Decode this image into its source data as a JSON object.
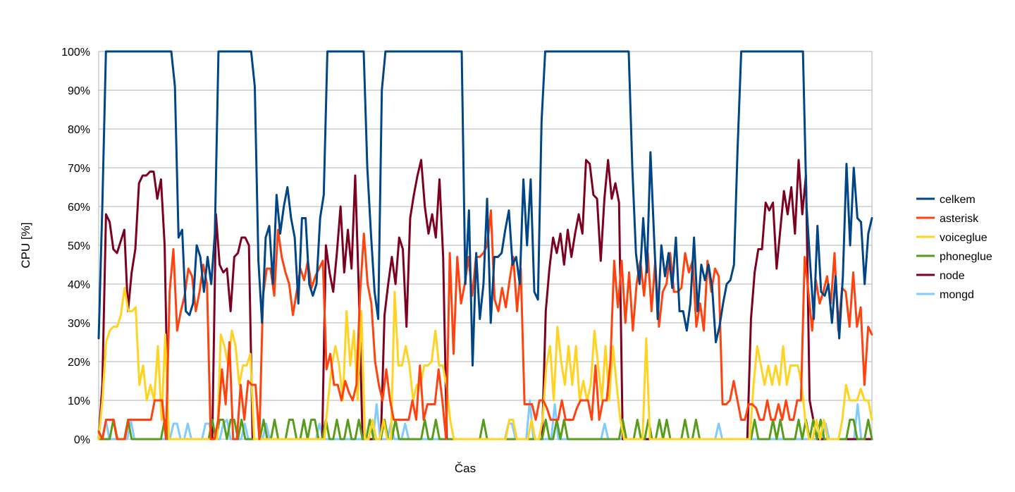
{
  "chart_data": {
    "type": "line",
    "title": "",
    "xlabel": "Čas",
    "ylabel": "CPU [%]",
    "ylim": [
      0,
      100
    ],
    "yticks": [
      "0%",
      "10%",
      "20%",
      "30%",
      "40%",
      "50%",
      "60%",
      "70%",
      "80%",
      "90%",
      "100%"
    ],
    "grid": true,
    "legend_position": "right",
    "series": [
      {
        "name": "celkem",
        "color": "#004586",
        "values": [
          26,
          60,
          100,
          100,
          100,
          100,
          100,
          100,
          100,
          100,
          100,
          100,
          100,
          100,
          100,
          100,
          100,
          100,
          100,
          100,
          100,
          91,
          52,
          54,
          33,
          32,
          35,
          50,
          47,
          38,
          47,
          40,
          53,
          100,
          100,
          100,
          100,
          100,
          100,
          100,
          100,
          100,
          100,
          91,
          46,
          30,
          52,
          55,
          40,
          63,
          53,
          60,
          65,
          57,
          52,
          35,
          57,
          57,
          40,
          37,
          40,
          57,
          63,
          100,
          100,
          100,
          100,
          100,
          100,
          100,
          100,
          100,
          100,
          100,
          70,
          53,
          38,
          31,
          90,
          100,
          100,
          100,
          100,
          100,
          100,
          100,
          100,
          100,
          100,
          100,
          100,
          100,
          100,
          100,
          100,
          100,
          100,
          100,
          100,
          100,
          100,
          40,
          59,
          19,
          48,
          31,
          40,
          62,
          30,
          47,
          47,
          48,
          54,
          59,
          45,
          47,
          40,
          67,
          50,
          67,
          38,
          36,
          82,
          100,
          100,
          100,
          100,
          100,
          100,
          100,
          100,
          100,
          100,
          100,
          100,
          100,
          100,
          100,
          100,
          100,
          100,
          100,
          100,
          100,
          100,
          100,
          100,
          70,
          48,
          40,
          57,
          43,
          74,
          52,
          31,
          50,
          42,
          48,
          39,
          52,
          33,
          33,
          28,
          35,
          52,
          33,
          45,
          41,
          45,
          39,
          25,
          29,
          35,
          40,
          41,
          45,
          75,
          100,
          100,
          100,
          100,
          100,
          100,
          100,
          100,
          100,
          100,
          100,
          100,
          100,
          100,
          100,
          100,
          100,
          100,
          60,
          45,
          31,
          55,
          38,
          37,
          40,
          30,
          42,
          26,
          42,
          71,
          50,
          70,
          57,
          56,
          40,
          53,
          57
        ]
      },
      {
        "name": "asterisk",
        "color": "#ff420e",
        "values": [
          2,
          0,
          5,
          5,
          5,
          0,
          0,
          0,
          5,
          5,
          5,
          5,
          5,
          5,
          5,
          10,
          10,
          10,
          0,
          38,
          49,
          28,
          33,
          37,
          44,
          42,
          33,
          38,
          45,
          40,
          0,
          0,
          5,
          18,
          9,
          25,
          0,
          0,
          14,
          5,
          15,
          14,
          14,
          0,
          37,
          44,
          44,
          37,
          54,
          47,
          43,
          40,
          32,
          38,
          44,
          41,
          46,
          39,
          42,
          44,
          46,
          18,
          22,
          14,
          14,
          10,
          15,
          12,
          10,
          14,
          38,
          53,
          40,
          35,
          20,
          14,
          10,
          18,
          10,
          5,
          5,
          5,
          5,
          5,
          10,
          5,
          19,
          5,
          9,
          9,
          9,
          18,
          10,
          0,
          48,
          22,
          47,
          35,
          40,
          47,
          37,
          47,
          47,
          48,
          50,
          59,
          36,
          33,
          39,
          34,
          41,
          47,
          33,
          44,
          9,
          9,
          9,
          5,
          10,
          10,
          8,
          5,
          5,
          5,
          10,
          5,
          5,
          5,
          8,
          10,
          10,
          10,
          5,
          19,
          5,
          10,
          10,
          20,
          46,
          34,
          46,
          30,
          43,
          28,
          40,
          46,
          37,
          48,
          33,
          46,
          29,
          38,
          40,
          48,
          38,
          38,
          39,
          48,
          43,
          46,
          29,
          35,
          28,
          46,
          38,
          44,
          42,
          9,
          9,
          10,
          15,
          10,
          5,
          5,
          9,
          9,
          8,
          5,
          5,
          10,
          5,
          5,
          9,
          5,
          10,
          5,
          5,
          10,
          10,
          47,
          38,
          28,
          41,
          35,
          38,
          42,
          35,
          48,
          28,
          39,
          38,
          29,
          43,
          29,
          34,
          14,
          29,
          27
        ]
      },
      {
        "name": "voiceglue",
        "color": "#ffd320",
        "values": [
          0,
          10,
          25,
          28,
          29,
          29,
          32,
          39,
          33,
          33,
          34,
          14,
          19,
          10,
          14,
          10,
          24,
          5,
          27,
          0,
          0,
          0,
          0,
          0,
          0,
          0,
          0,
          0,
          0,
          0,
          0,
          0,
          0,
          27,
          24,
          19,
          28,
          24,
          14,
          19,
          19,
          22,
          0,
          0,
          0,
          0,
          0,
          0,
          0,
          0,
          0,
          0,
          0,
          0,
          0,
          0,
          0,
          0,
          0,
          0,
          0,
          0,
          10,
          19,
          24,
          19,
          10,
          33,
          19,
          28,
          10,
          33,
          0,
          0,
          5,
          0,
          0,
          5,
          0,
          0,
          38,
          19,
          19,
          24,
          19,
          10,
          14,
          14,
          19,
          19,
          20,
          28,
          19,
          19,
          14,
          5,
          0,
          0,
          0,
          0,
          0,
          0,
          0,
          0,
          0,
          0,
          0,
          0,
          0,
          0,
          0,
          5,
          5,
          0,
          0,
          0,
          0,
          5,
          0,
          0,
          5,
          19,
          24,
          10,
          29,
          20,
          14,
          24,
          14,
          24,
          10,
          15,
          10,
          14,
          28,
          19,
          10,
          24,
          10,
          24,
          14,
          5,
          0,
          0,
          0,
          0,
          0,
          0,
          26,
          0,
          0,
          0,
          0,
          0,
          0,
          0,
          0,
          0,
          0,
          0,
          0,
          0,
          0,
          0,
          0,
          0,
          0,
          0,
          0,
          0,
          0,
          0,
          0,
          0,
          0,
          0,
          0,
          14,
          24,
          19,
          14,
          19,
          14,
          19,
          14,
          24,
          14,
          19,
          19,
          19,
          14,
          5,
          0,
          0,
          5,
          0,
          5,
          0,
          0,
          0,
          0,
          5,
          14,
          10,
          10,
          10,
          13,
          10,
          10,
          5
        ]
      },
      {
        "name": "phoneglue",
        "color": "#579d1c",
        "values": [
          0,
          0,
          0,
          0,
          5,
          0,
          0,
          0,
          5,
          0,
          0,
          0,
          0,
          0,
          0,
          0,
          0,
          0,
          5,
          0,
          0,
          0,
          0,
          0,
          0,
          0,
          0,
          0,
          0,
          0,
          0,
          5,
          0,
          5,
          5,
          0,
          5,
          5,
          0,
          5,
          0,
          0,
          0,
          0,
          0,
          5,
          0,
          0,
          5,
          0,
          0,
          0,
          5,
          5,
          0,
          0,
          5,
          0,
          5,
          5,
          0,
          0,
          5,
          0,
          0,
          5,
          0,
          0,
          5,
          0,
          0,
          5,
          0,
          0,
          5,
          0,
          0,
          0,
          5,
          0,
          0,
          5,
          0,
          0,
          0,
          0,
          0,
          0,
          0,
          5,
          0,
          0,
          5,
          0,
          0,
          0,
          0,
          0,
          0,
          0,
          0,
          0,
          0,
          0,
          0,
          5,
          0,
          0,
          0,
          0,
          0,
          0,
          0,
          0,
          0,
          0,
          0,
          0,
          0,
          0,
          0,
          0,
          5,
          0,
          0,
          5,
          0,
          5,
          0,
          0,
          0,
          0,
          0,
          0,
          0,
          0,
          0,
          0,
          0,
          0,
          0,
          0,
          0,
          5,
          0,
          0,
          0,
          5,
          0,
          0,
          5,
          0,
          0,
          5,
          0,
          5,
          0,
          0,
          0,
          0,
          5,
          0,
          0,
          5,
          0,
          0,
          0,
          0,
          0,
          0,
          0,
          0,
          0,
          0,
          0,
          0,
          0,
          0,
          0,
          5,
          0,
          0,
          0,
          0,
          5,
          0,
          5,
          0,
          0,
          0,
          0,
          5,
          0,
          5,
          0,
          5,
          0,
          5,
          0,
          0,
          0,
          0,
          0,
          0,
          0,
          5,
          5,
          0,
          0,
          0,
          5,
          0
        ]
      },
      {
        "name": "node",
        "color": "#7e0021",
        "values": [
          0,
          14,
          58,
          56,
          49,
          48,
          51,
          54,
          33,
          43,
          49,
          66,
          68,
          68,
          69,
          69,
          62,
          67,
          50,
          0,
          0,
          0,
          0,
          0,
          0,
          0,
          0,
          0,
          0,
          0,
          0,
          0,
          58,
          45,
          43,
          44,
          33,
          47,
          48,
          52,
          52,
          50,
          0,
          0,
          0,
          0,
          0,
          0,
          0,
          0,
          0,
          0,
          0,
          0,
          0,
          0,
          0,
          0,
          0,
          0,
          0,
          0,
          50,
          43,
          38,
          48,
          60,
          43,
          54,
          44,
          68,
          38,
          0,
          0,
          0,
          0,
          0,
          0,
          32,
          40,
          47,
          40,
          52,
          49,
          29,
          57,
          63,
          68,
          72,
          60,
          53,
          58,
          52,
          67,
          47,
          0,
          0,
          0,
          0,
          0,
          0,
          0,
          0,
          0,
          0,
          0,
          0,
          0,
          0,
          0,
          0,
          0,
          0,
          0,
          0,
          0,
          0,
          0,
          0,
          0,
          0,
          0,
          33,
          44,
          52,
          48,
          53,
          45,
          54,
          47,
          53,
          58,
          53,
          72,
          71,
          63,
          62,
          46,
          62,
          72,
          62,
          66,
          61,
          0,
          0,
          0,
          0,
          0,
          0,
          0,
          0,
          0,
          0,
          0,
          0,
          0,
          0,
          0,
          0,
          0,
          0,
          0,
          0,
          0,
          0,
          0,
          0,
          0,
          0,
          0,
          0,
          0,
          0,
          0,
          0,
          0,
          0,
          0,
          31,
          43,
          49,
          49,
          61,
          59,
          61,
          44,
          54,
          64,
          58,
          65,
          53,
          72,
          58,
          68,
          10,
          5,
          0,
          0,
          0,
          0,
          0,
          0,
          0,
          0,
          0,
          0,
          0,
          0,
          0,
          0,
          0,
          0
        ]
      },
      {
        "name": "mongd",
        "color": "#83caff",
        "values": [
          0,
          0,
          5,
          0,
          0,
          0,
          0,
          0,
          0,
          5,
          0,
          0,
          0,
          0,
          0,
          0,
          0,
          0,
          0,
          0,
          0,
          4,
          4,
          0,
          0,
          4,
          0,
          0,
          0,
          0,
          4,
          4,
          0,
          0,
          0,
          4,
          5,
          0,
          0,
          0,
          0,
          4,
          0,
          0,
          0,
          0,
          0,
          4,
          0,
          0,
          0,
          0,
          0,
          0,
          0,
          0,
          0,
          0,
          0,
          0,
          0,
          0,
          4,
          0,
          0,
          0,
          0,
          0,
          0,
          0,
          0,
          0,
          0,
          0,
          0,
          0,
          0,
          0,
          9,
          0,
          0,
          0,
          4,
          0,
          0,
          0,
          4,
          0,
          0,
          0,
          0,
          0,
          0,
          0,
          0,
          0,
          0,
          0,
          0,
          0,
          0,
          0,
          0,
          0,
          0,
          0,
          0,
          0,
          0,
          0,
          0,
          0,
          0,
          0,
          0,
          4,
          4,
          0,
          0,
          0,
          0,
          10,
          0,
          0,
          0,
          0,
          0,
          0,
          9,
          0,
          0,
          0,
          0,
          0,
          0,
          0,
          0,
          0,
          0,
          0,
          0,
          0,
          4,
          0,
          0,
          0,
          0,
          0,
          0,
          0,
          0,
          0,
          0,
          0,
          0,
          0,
          0,
          0,
          0,
          0,
          0,
          0,
          0,
          0,
          0,
          0,
          0,
          0,
          0,
          0,
          0,
          0,
          0,
          0,
          4,
          0,
          0,
          0,
          0,
          0,
          0,
          0,
          0,
          0,
          0,
          0,
          0,
          0,
          0,
          0,
          0,
          0,
          0,
          0,
          0,
          0,
          0,
          0,
          0,
          0,
          0,
          0,
          0,
          0,
          4,
          0,
          0,
          0,
          0,
          0,
          0,
          0,
          0,
          9,
          0,
          0,
          0,
          0
        ]
      }
    ]
  }
}
